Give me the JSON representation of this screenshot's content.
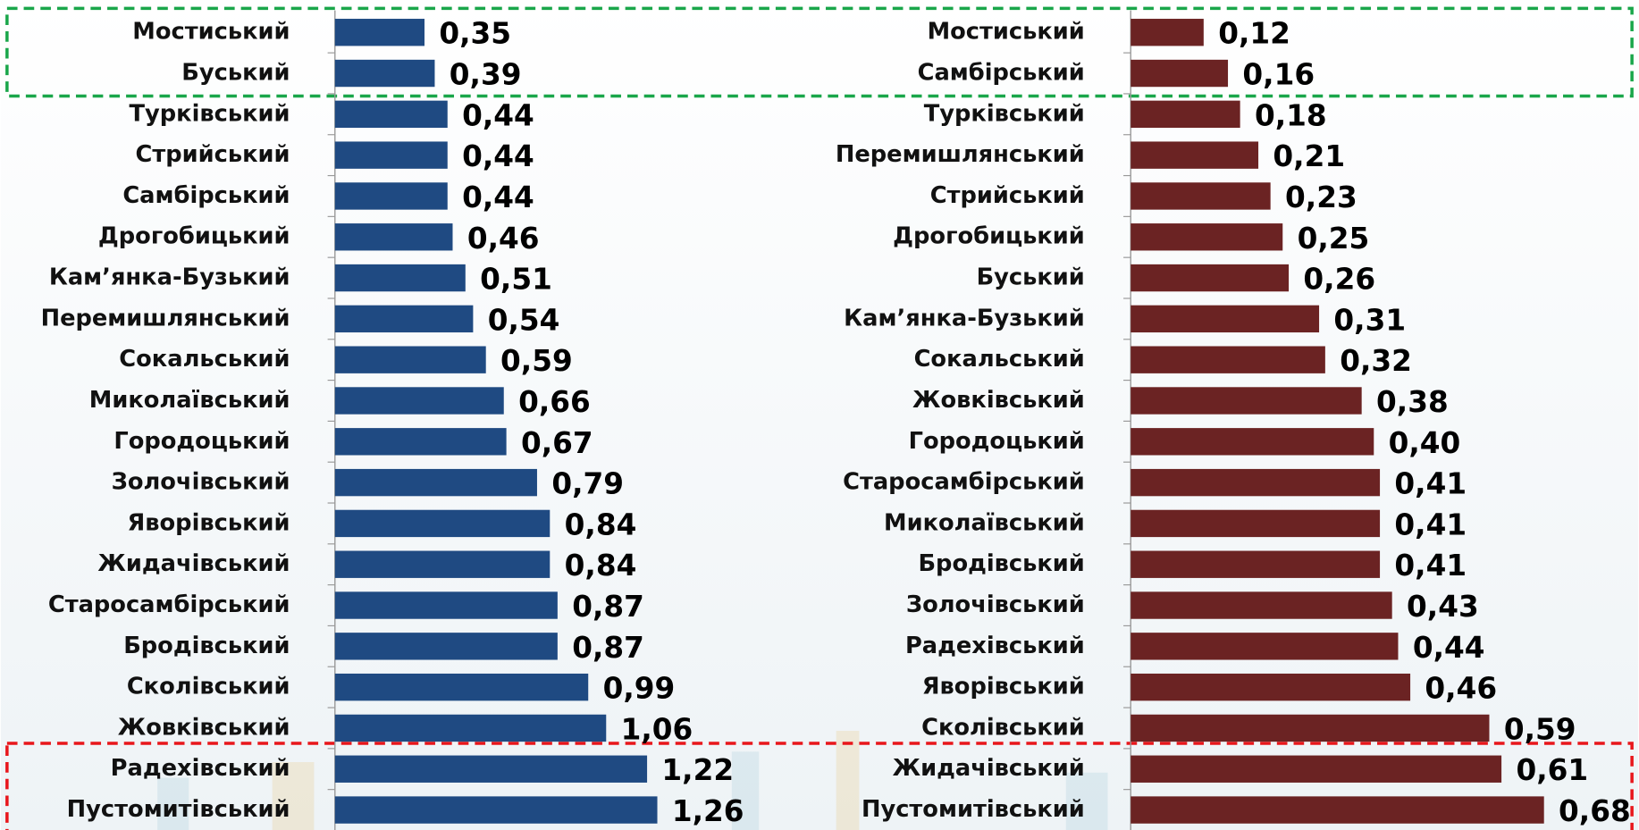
{
  "chart_data": [
    {
      "type": "bar",
      "orientation": "horizontal",
      "color": "#1f4a82",
      "categories": [
        "Мостиський",
        "Буський",
        "Турківський",
        "Стрийський",
        "Самбірський",
        "Дрогобицький",
        "Кам’янка-Бузький",
        "Перемишлянський",
        "Сокальський",
        "Миколаївський",
        "Городоцький",
        "Золочівський",
        "Яворівський",
        "Жидачівський",
        "Старосамбірський",
        "Бродівський",
        "Сколівський",
        "Жовківський",
        "Радехівський",
        "Пустомитівський"
      ],
      "values": [
        0.35,
        0.39,
        0.44,
        0.44,
        0.44,
        0.46,
        0.51,
        0.54,
        0.59,
        0.66,
        0.67,
        0.79,
        0.84,
        0.84,
        0.87,
        0.87,
        0.99,
        1.06,
        1.22,
        1.26
      ],
      "value_labels": [
        "0,35",
        "0,39",
        "0,44",
        "0,44",
        "0,44",
        "0,46",
        "0,51",
        "0,54",
        "0,59",
        "0,66",
        "0,67",
        "0,79",
        "0,84",
        "0,84",
        "0,87",
        "0,87",
        "0,99",
        "1,06",
        "1,22",
        "1,26"
      ]
    },
    {
      "type": "bar",
      "orientation": "horizontal",
      "color": "#6b2323",
      "categories": [
        "Мостиський",
        "Самбірський",
        "Турківський",
        "Перемишлянський",
        "Стрийський",
        "Дрогобицький",
        "Буський",
        "Кам’янка-Бузький",
        "Сокальський",
        "Жовківський",
        "Городоцький",
        "Старосамбірський",
        "Миколаївський",
        "Бродівський",
        "Золочівський",
        "Радехівський",
        "Яворівський",
        "Сколівський",
        "Жидачівський",
        "Пустомитівський"
      ],
      "values": [
        0.12,
        0.16,
        0.18,
        0.21,
        0.23,
        0.25,
        0.26,
        0.31,
        0.32,
        0.38,
        0.4,
        0.41,
        0.41,
        0.41,
        0.43,
        0.44,
        0.46,
        0.59,
        0.61,
        0.68
      ],
      "value_labels": [
        "0,12",
        "0,16",
        "0,18",
        "0,21",
        "0,23",
        "0,25",
        "0,26",
        "0,31",
        "0,32",
        "0,38",
        "0,40",
        "0,41",
        "0,41",
        "0,41",
        "0,43",
        "0,44",
        "0,46",
        "0,59",
        "0,61",
        "0,68"
      ]
    }
  ]
}
